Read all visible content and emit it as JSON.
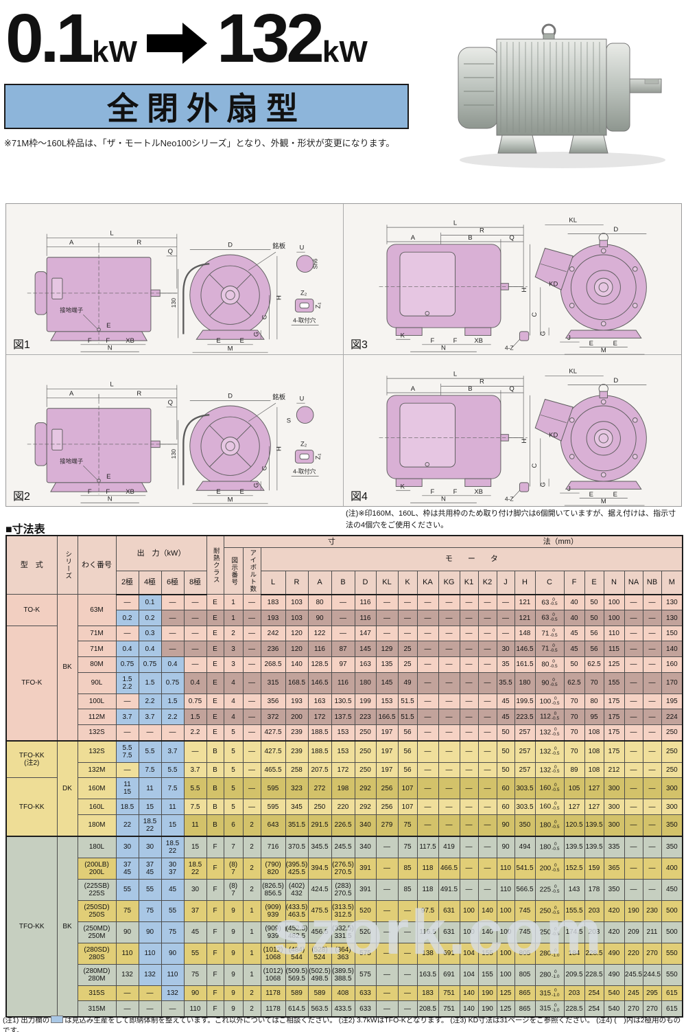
{
  "colors": {
    "highlight_blue": "#a9c7e5",
    "title_box_blue": "#8db5da",
    "pink_light": "#f5d2c4",
    "pink_dark": "#c2a39b",
    "yellow_light": "#f0df9b",
    "yellow_dark": "#d3c26a",
    "green": "#c6cfc0",
    "gold": "#e1ce77"
  },
  "header": {
    "from": "0.1",
    "from_unit": "kW",
    "to": "132",
    "to_unit": "kW",
    "type_title": "全閉外扇型",
    "note": "※71M枠〜160L枠品は、「ザ・モートルNeo100シリーズ」となり、外観・形状が変更になります。"
  },
  "figures": {
    "note": "(注)※印160M、160L、枠は共用枠のため取り付け脚穴は6個開いていますが、据え付けは、指示寸法の4個穴をご使用ください。",
    "items": [
      {
        "caption": "図1",
        "kind": "k",
        "labels": [
          "L",
          "A",
          "R",
          "Q",
          "接地端子",
          "E",
          "F",
          "F",
          "XB",
          "N",
          "D",
          "銘板",
          "130",
          "H",
          "G",
          "C",
          "E",
          "E",
          "M",
          "U",
          "Sh6",
          "Z₂",
          "Z₁",
          "4-取付穴"
        ]
      },
      {
        "caption": "図3",
        "kind": "b",
        "labels": [
          "L",
          "R",
          "A",
          "B",
          "Q",
          "K",
          "F",
          "F",
          "XB",
          "N",
          "4-Z",
          "KL",
          "D",
          "H",
          "C",
          "G",
          "KD",
          "J",
          "E",
          "E",
          "M"
        ]
      },
      {
        "caption": "図2",
        "kind": "k2",
        "labels": [
          "L",
          "A",
          "R",
          "Q",
          "接地端子",
          "E",
          "F",
          "F",
          "XB",
          "N",
          "D",
          "銘板",
          "130",
          "H",
          "G",
          "C",
          "E",
          "E",
          "M",
          "U",
          "S",
          "Z₂",
          "Z₁",
          "4-取付穴"
        ]
      },
      {
        "caption": "図4",
        "kind": "b",
        "labels": [
          "L",
          "R",
          "A",
          "B",
          "Q",
          "K",
          "F",
          "F",
          "XB",
          "N",
          "4-Z",
          "KL",
          "D",
          "H",
          "C",
          "G",
          "KD",
          "J",
          "E",
          "E",
          "M"
        ]
      }
    ]
  },
  "table": {
    "title": "■寸法表",
    "headers": {
      "model": "型　式",
      "series": "シリーズ",
      "frame": "わく番号",
      "output": "出　力（kW）",
      "poles": [
        "2極",
        "4極",
        "6極",
        "8極"
      ],
      "heat": "耐熱クラス",
      "dim1": "寸",
      "dim2": "法（mm）",
      "motor": "モ　　ー　　タ",
      "fig": "図示番号",
      "eye": "アイボルト数",
      "letters": [
        "L",
        "R",
        "A",
        "B",
        "D",
        "KL",
        "K",
        "KA",
        "KG",
        "K1",
        "K2",
        "J",
        "H",
        "C",
        "F",
        "E",
        "N",
        "NA",
        "NB",
        "M"
      ]
    },
    "rows": [
      {
        "m": "TO-K",
        "ms": 2,
        "s": "BK",
        "ss": 9,
        "f": "63M",
        "fs": 2,
        "p": [
          "—",
          "0.1",
          "—",
          "—"
        ],
        "b": [
          0,
          1,
          0,
          0
        ],
        "hc": "E",
        "fg": "1",
        "ey": "—",
        "d": [
          "183",
          "103",
          "80",
          "—",
          "116",
          "—",
          "—",
          "—",
          "—",
          "—",
          "—",
          "—",
          "121",
          "63*-0.5",
          "40",
          "50",
          "100",
          "—",
          "—",
          "130"
        ],
        "sec": "p",
        "sh": "L"
      },
      {
        "p": [
          "0.2",
          "0.2",
          "—",
          "—"
        ],
        "b": [
          1,
          1,
          0,
          0
        ],
        "hc": "E",
        "fg": "1",
        "ey": "—",
        "d": [
          "193",
          "103",
          "90",
          "—",
          "116",
          "—",
          "—",
          "—",
          "—",
          "—",
          "—",
          "—",
          "121",
          "63*-0.5",
          "40",
          "50",
          "100",
          "—",
          "—",
          "130"
        ],
        "sec": "p",
        "sh": "D"
      },
      {
        "m": "TFO-K",
        "ms": 7,
        "f": "71M",
        "p": [
          "—",
          "0.3",
          "—",
          "—"
        ],
        "b": [
          0,
          1,
          0,
          0
        ],
        "hc": "E",
        "fg": "2",
        "ey": "—",
        "d": [
          "242",
          "120",
          "122",
          "—",
          "147",
          "—",
          "—",
          "—",
          "—",
          "—",
          "—",
          "—",
          "148",
          "71*-0.5",
          "45",
          "56",
          "110",
          "—",
          "—",
          "150"
        ],
        "sec": "p",
        "sh": "L"
      },
      {
        "f": "71M",
        "p": [
          "0.4",
          "0.4",
          "—",
          "—"
        ],
        "b": [
          1,
          1,
          0,
          0
        ],
        "hc": "E",
        "fg": "3",
        "ey": "—",
        "d": [
          "236",
          "120",
          "116",
          "87",
          "145",
          "129",
          "25",
          "—",
          "—",
          "—",
          "—",
          "30",
          "146.5",
          "71*-0.5",
          "45",
          "56",
          "115",
          "—",
          "—",
          "140"
        ],
        "sec": "p",
        "sh": "D"
      },
      {
        "f": "80M",
        "p": [
          "0.75",
          "0.75",
          "0.4",
          "—"
        ],
        "b": [
          1,
          1,
          1,
          0
        ],
        "hc": "E",
        "fg": "3",
        "ey": "—",
        "d": [
          "268.5",
          "140",
          "128.5",
          "97",
          "163",
          "135",
          "25",
          "—",
          "—",
          "—",
          "—",
          "35",
          "161.5",
          "80*-0.5",
          "50",
          "62.5",
          "125",
          "—",
          "—",
          "160"
        ],
        "sec": "p",
        "sh": "L"
      },
      {
        "f": "90L",
        "p": [
          "1.5\n2.2",
          "1.5",
          "0.75",
          "0.4"
        ],
        "b": [
          1,
          1,
          1,
          0
        ],
        "hc": "E",
        "fg": "4",
        "ey": "—",
        "d": [
          "315",
          "168.5",
          "146.5",
          "116",
          "180",
          "145",
          "49",
          "—",
          "—",
          "—",
          "—",
          "35.5",
          "180",
          "90*-0.5",
          "62.5",
          "70",
          "155",
          "—",
          "—",
          "170"
        ],
        "sec": "p",
        "sh": "D"
      },
      {
        "f": "100L",
        "p": [
          "—",
          "2.2",
          "1.5",
          "0.75"
        ],
        "b": [
          0,
          1,
          1,
          0
        ],
        "hc": "E",
        "fg": "4",
        "ey": "—",
        "d": [
          "356",
          "193",
          "163",
          "130.5",
          "199",
          "153",
          "51.5",
          "—",
          "—",
          "—",
          "—",
          "45",
          "199.5",
          "100*-0.5",
          "70",
          "80",
          "175",
          "—",
          "—",
          "195"
        ],
        "sec": "p",
        "sh": "L"
      },
      {
        "f": "112M",
        "p": [
          "3.7",
          "3.7",
          "2.2",
          "1.5"
        ],
        "b": [
          1,
          1,
          1,
          0
        ],
        "hc": "E",
        "fg": "4",
        "ey": "—",
        "d": [
          "372",
          "200",
          "172",
          "137.5",
          "223",
          "166.5",
          "51.5",
          "—",
          "—",
          "—",
          "—",
          "45",
          "223.5",
          "112*-0.5",
          "70",
          "95",
          "175",
          "—",
          "—",
          "224"
        ],
        "sec": "p",
        "sh": "D"
      },
      {
        "f": "132S",
        "p": [
          "—",
          "—",
          "—",
          "2.2"
        ],
        "b": [
          0,
          0,
          0,
          0
        ],
        "hc": "E",
        "fg": "5",
        "ey": "—",
        "d": [
          "427.5",
          "239",
          "188.5",
          "153",
          "250",
          "197",
          "56",
          "—",
          "—",
          "—",
          "—",
          "50",
          "257",
          "132*-0.5",
          "70",
          "108",
          "175",
          "—",
          "—",
          "250"
        ],
        "sec": "p",
        "sh": "L"
      },
      {
        "m": "TFO-KK\n(注2)",
        "ms": 2,
        "s": "DK",
        "ss": 5,
        "f": "132S",
        "p": [
          "5.5\n7.5",
          "5.5",
          "3.7",
          "—"
        ],
        "b": [
          1,
          1,
          1,
          0
        ],
        "hc": "B",
        "fg": "5",
        "ey": "—",
        "d": [
          "427.5",
          "239",
          "188.5",
          "153",
          "250",
          "197",
          "56",
          "—",
          "—",
          "—",
          "—",
          "50",
          "257",
          "132*-0.5",
          "70",
          "108",
          "175",
          "—",
          "—",
          "250"
        ],
        "sec": "y",
        "sh": "L",
        "sb": true
      },
      {
        "f": "132M",
        "p": [
          "—",
          "7.5",
          "5.5",
          "3.7"
        ],
        "b": [
          0,
          1,
          1,
          0
        ],
        "hc": "B",
        "fg": "5",
        "ey": "—",
        "d": [
          "465.5",
          "258",
          "207.5",
          "172",
          "250",
          "197",
          "56",
          "—",
          "—",
          "—",
          "—",
          "50",
          "257",
          "132*-0.5",
          "89",
          "108",
          "212",
          "—",
          "—",
          "250"
        ],
        "sec": "y",
        "sh": "L"
      },
      {
        "m": "TFO-KK",
        "ms": 3,
        "f": "160M",
        "p": [
          "11\n15",
          "11",
          "7.5",
          "5.5"
        ],
        "b": [
          1,
          1,
          1,
          0
        ],
        "hc": "B",
        "fg": "5",
        "ey": "—",
        "d": [
          "595",
          "323",
          "272",
          "198",
          "292",
          "256",
          "107",
          "—",
          "—",
          "—",
          "—",
          "60",
          "303.5",
          "160*-0.5",
          "105",
          "127",
          "300",
          "—",
          "—",
          "300"
        ],
        "sec": "y",
        "sh": "D"
      },
      {
        "f": "160L",
        "p": [
          "18.5",
          "15",
          "11",
          "7.5"
        ],
        "b": [
          1,
          1,
          1,
          0
        ],
        "hc": "B",
        "fg": "5",
        "ey": "—",
        "d": [
          "595",
          "345",
          "250",
          "220",
          "292",
          "256",
          "107",
          "—",
          "—",
          "—",
          "—",
          "60",
          "303.5",
          "160*-0.5",
          "127",
          "127",
          "300",
          "—",
          "—",
          "300"
        ],
        "sec": "y",
        "sh": "L"
      },
      {
        "f": "180M",
        "p": [
          "22",
          "18.5\n22",
          "15",
          "11"
        ],
        "b": [
          1,
          1,
          1,
          0
        ],
        "hc": "B",
        "fg": "6",
        "ey": "2",
        "d": [
          "643",
          "351.5",
          "291.5",
          "226.5",
          "340",
          "279",
          "75",
          "—",
          "—",
          "—",
          "—",
          "90",
          "350",
          "180*-0.5",
          "120.5",
          "139.5",
          "300",
          "—",
          "—",
          "350"
        ],
        "sec": "y",
        "sh": "D"
      },
      {
        "m": "TFO-KK",
        "ms": 9,
        "s": "BK",
        "ss": 9,
        "f": "180L",
        "p": [
          "30",
          "30",
          "18.5\n22",
          "15"
        ],
        "b": [
          1,
          1,
          1,
          0
        ],
        "hc": "F",
        "fg": "7",
        "ey": "2",
        "d": [
          "716",
          "370.5",
          "345.5",
          "245.5",
          "340",
          "—",
          "75",
          "117.5",
          "419",
          "—",
          "—",
          "90",
          "494",
          "180*-0.5",
          "139.5",
          "139.5",
          "335",
          "—",
          "—",
          "350"
        ],
        "sec": "g",
        "sh": "L",
        "sb": true
      },
      {
        "f": "(200LB)\n200L",
        "p": [
          "37\n45",
          "37\n45",
          "30\n37",
          "18.5\n22"
        ],
        "b": [
          1,
          1,
          1,
          0
        ],
        "hc": "F",
        "fg": "(8)\n7",
        "ey": "2",
        "d": [
          "(790)\n820",
          "(395.5)\n425.5",
          "394.5",
          "(276.5)\n270.5",
          "391",
          "—",
          "85",
          "118",
          "466.5",
          "—",
          "—",
          "110",
          "541.5",
          "200*-0.5",
          "152.5",
          "159",
          "365",
          "—",
          "—",
          "400"
        ],
        "sec": "g",
        "sh": "D"
      },
      {
        "f": "(225SB)\n225S",
        "p": [
          "55",
          "55",
          "45",
          "30"
        ],
        "b": [
          1,
          1,
          1,
          0
        ],
        "hc": "F",
        "fg": "(8)\n7",
        "ey": "2",
        "d": [
          "(826.5)\n856.5",
          "(402)\n432",
          "424.5",
          "(283)\n270.5",
          "391",
          "—",
          "85",
          "118",
          "491.5",
          "—",
          "—",
          "110",
          "566.5",
          "225*-0.5",
          "143",
          "178",
          "350",
          "—",
          "—",
          "450"
        ],
        "sec": "g",
        "sh": "L"
      },
      {
        "f": "(250SD)\n250S",
        "p": [
          "75",
          "75",
          "55",
          "37"
        ],
        "b": [
          0,
          1,
          1,
          0
        ],
        "hc": "F",
        "fg": "9",
        "ey": "1",
        "d": [
          "(909)\n939",
          "(433.5)\n463.5",
          "475.5",
          "(313.5)\n312.5",
          "520",
          "—",
          "—",
          "97.5",
          "631",
          "100",
          "140",
          "100",
          "745",
          "250*-0.5",
          "155.5",
          "203",
          "420",
          "190",
          "230",
          "500"
        ],
        "sec": "g",
        "sh": "D"
      },
      {
        "f": "(250MD)\n250M",
        "p": [
          "90",
          "90",
          "75",
          "45"
        ],
        "b": [
          0,
          1,
          1,
          0
        ],
        "hc": "F",
        "fg": "9",
        "ey": "1",
        "d": [
          "(909)\n939",
          "(452.5)\n482.5",
          "456.5",
          "(332.5)\n331.5",
          "520",
          "—",
          "—",
          "116.5",
          "631",
          "100",
          "140",
          "100",
          "745",
          "250*-0.5",
          "174.5",
          "203",
          "420",
          "209",
          "211",
          "500"
        ],
        "sec": "g",
        "sh": "L"
      },
      {
        "f": "(280SD)\n280S",
        "p": [
          "110",
          "110",
          "90",
          "55"
        ],
        "b": [
          0,
          1,
          1,
          0
        ],
        "hc": "F",
        "fg": "9",
        "ey": "1",
        "d": [
          "(1012)\n1068",
          "(484)\n544",
          "(528)\n524",
          "(364)\n363",
          "575",
          "—",
          "—",
          "138",
          "691",
          "104",
          "155",
          "100",
          "805",
          "280*-1.0",
          "184",
          "228.5",
          "490",
          "220",
          "270",
          "550"
        ],
        "sec": "g",
        "sh": "D"
      },
      {
        "f": "(280MD)\n280M",
        "p": [
          "132",
          "132",
          "110",
          "75"
        ],
        "b": [
          0,
          1,
          1,
          0
        ],
        "hc": "F",
        "fg": "9",
        "ey": "1",
        "d": [
          "(1012)\n1068",
          "(509.5)\n569.5",
          "(502.5)\n498.5",
          "(389.5)\n388.5",
          "575",
          "—",
          "—",
          "163.5",
          "691",
          "104",
          "155",
          "100",
          "805",
          "280*-1.0",
          "209.5",
          "228.5",
          "490",
          "245.5",
          "244.5",
          "550"
        ],
        "sec": "g",
        "sh": "L"
      },
      {
        "f": "315S",
        "p": [
          "—",
          "—",
          "132",
          "90"
        ],
        "b": [
          0,
          0,
          1,
          0
        ],
        "hc": "F",
        "fg": "9",
        "ey": "2",
        "d": [
          "1178",
          "589",
          "589",
          "408",
          "633",
          "—",
          "—",
          "183",
          "751",
          "140",
          "190",
          "125",
          "865",
          "315*-1.0",
          "203",
          "254",
          "540",
          "245",
          "295",
          "615"
        ],
        "sec": "g",
        "sh": "D"
      },
      {
        "f": "315M",
        "p": [
          "—",
          "—",
          "—",
          "110"
        ],
        "b": [
          0,
          0,
          0,
          0
        ],
        "hc": "F",
        "fg": "9",
        "ey": "2",
        "d": [
          "1178",
          "614.5",
          "563.5",
          "433.5",
          "633",
          "—",
          "—",
          "208.5",
          "751",
          "140",
          "190",
          "125",
          "865",
          "315*-1.0",
          "228.5",
          "254",
          "540",
          "270",
          "270",
          "615"
        ],
        "sec": "g",
        "sh": "L"
      }
    ]
  },
  "footnotes": {
    "n1a": "(注1) 出力欄の",
    "n1b": "は見込み生産をして即納体制を整えています。これ以外についてはご相談ください。",
    "n2": "(注2) 3.7kWはTFO-Kとなります。",
    "n3": "(注3) KD寸法は31ページをご参照ください。",
    "n4": "(注4) (　)内は2極用のものです。"
  },
  "watermark": "szork.com"
}
